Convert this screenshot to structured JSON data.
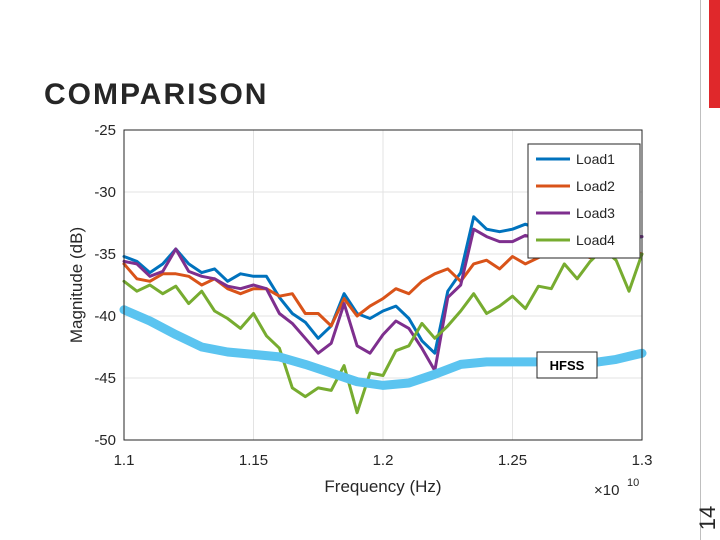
{
  "slide": {
    "title": "COMPARISON",
    "page_number": "14",
    "accent_color": "#e0282b"
  },
  "chart_data": {
    "type": "line",
    "title": "",
    "xlabel": "Frequency (Hz)",
    "ylabel": "Magnitude (dB)",
    "x_exponent_label": "×10",
    "x_exponent_power": "10",
    "xlim": [
      1.1,
      1.3
    ],
    "ylim": [
      -50,
      -25
    ],
    "xticks": [
      1.1,
      1.15,
      1.2,
      1.25,
      1.3
    ],
    "xtick_labels": [
      "1.1",
      "1.15",
      "1.2",
      "1.25",
      "1.3"
    ],
    "yticks": [
      -25,
      -30,
      -35,
      -40,
      -45,
      -50
    ],
    "ytick_labels": [
      "-25",
      "-30",
      "-35",
      "-40",
      "-45",
      "-50"
    ],
    "grid": true,
    "legend_position": "top-right",
    "annotation": "HFSS",
    "series": [
      {
        "name": "Load1",
        "color": "#0072bd",
        "x": [
          1.1,
          1.105,
          1.11,
          1.115,
          1.12,
          1.125,
          1.13,
          1.135,
          1.14,
          1.145,
          1.15,
          1.155,
          1.16,
          1.165,
          1.17,
          1.175,
          1.18,
          1.185,
          1.19,
          1.195,
          1.2,
          1.205,
          1.21,
          1.215,
          1.22,
          1.225,
          1.23,
          1.235,
          1.24,
          1.245,
          1.25,
          1.255,
          1.26,
          1.265,
          1.27,
          1.275,
          1.28,
          1.285,
          1.29,
          1.295,
          1.3
        ],
        "y": [
          -35.2,
          -35.6,
          -36.5,
          -35.8,
          -34.6,
          -35.8,
          -36.5,
          -36.2,
          -37.2,
          -36.6,
          -36.8,
          -36.8,
          -38.5,
          -39.8,
          -40.5,
          -41.8,
          -40.8,
          -38.2,
          -39.8,
          -40.2,
          -39.6,
          -39.2,
          -40.2,
          -42.0,
          -43.0,
          -38.0,
          -36.5,
          -32.0,
          -33.0,
          -33.2,
          -33.0,
          -32.6,
          -33.0,
          -33.5,
          -34.8,
          -34.0,
          -33.8,
          -34.0,
          -33.8,
          -33.8,
          -33.6
        ]
      },
      {
        "name": "Load2",
        "color": "#d95319",
        "x": [
          1.1,
          1.105,
          1.11,
          1.115,
          1.12,
          1.125,
          1.13,
          1.135,
          1.14,
          1.145,
          1.15,
          1.155,
          1.16,
          1.165,
          1.17,
          1.175,
          1.18,
          1.185,
          1.19,
          1.195,
          1.2,
          1.205,
          1.21,
          1.215,
          1.22,
          1.225,
          1.23,
          1.235,
          1.24,
          1.245,
          1.25,
          1.255,
          1.26,
          1.265,
          1.27,
          1.275,
          1.28,
          1.285,
          1.29,
          1.295,
          1.3
        ],
        "y": [
          -35.8,
          -37.0,
          -37.2,
          -36.6,
          -36.6,
          -36.8,
          -37.5,
          -37.0,
          -37.8,
          -38.2,
          -37.8,
          -37.8,
          -38.4,
          -38.2,
          -39.8,
          -39.8,
          -40.8,
          -38.6,
          -40.0,
          -39.2,
          -38.6,
          -37.8,
          -38.2,
          -37.2,
          -36.6,
          -36.2,
          -37.2,
          -35.8,
          -35.5,
          -36.2,
          -35.2,
          -35.8,
          -35.3,
          -34.8,
          -35.0,
          -34.9,
          -35.3,
          -34.5,
          -35.0,
          -34.8,
          -35.0
        ]
      },
      {
        "name": "Load3",
        "color": "#7e2f8e",
        "x": [
          1.1,
          1.105,
          1.11,
          1.115,
          1.12,
          1.125,
          1.13,
          1.135,
          1.14,
          1.145,
          1.15,
          1.155,
          1.16,
          1.165,
          1.17,
          1.175,
          1.18,
          1.185,
          1.19,
          1.195,
          1.2,
          1.205,
          1.21,
          1.215,
          1.22,
          1.225,
          1.23,
          1.235,
          1.24,
          1.245,
          1.25,
          1.255,
          1.26,
          1.265,
          1.27,
          1.275,
          1.28,
          1.285,
          1.29,
          1.295,
          1.3
        ],
        "y": [
          -35.6,
          -35.8,
          -36.8,
          -36.4,
          -34.6,
          -36.4,
          -36.8,
          -37.0,
          -37.6,
          -37.8,
          -37.5,
          -37.8,
          -39.8,
          -40.6,
          -41.8,
          -43.0,
          -42.2,
          -39.0,
          -42.4,
          -43.0,
          -41.5,
          -40.4,
          -41.0,
          -42.6,
          -44.4,
          -38.5,
          -37.5,
          -33.0,
          -33.6,
          -34.0,
          -34.0,
          -33.5,
          -33.8,
          -34.2,
          -35.0,
          -34.5,
          -34.0,
          -33.6,
          -33.8,
          -33.6,
          -33.6
        ]
      },
      {
        "name": "Load4",
        "color": "#77ac30",
        "x": [
          1.1,
          1.105,
          1.11,
          1.115,
          1.12,
          1.125,
          1.13,
          1.135,
          1.14,
          1.145,
          1.15,
          1.155,
          1.16,
          1.165,
          1.17,
          1.175,
          1.18,
          1.185,
          1.19,
          1.195,
          1.2,
          1.205,
          1.21,
          1.215,
          1.22,
          1.225,
          1.23,
          1.235,
          1.24,
          1.245,
          1.25,
          1.255,
          1.26,
          1.265,
          1.27,
          1.275,
          1.28,
          1.285,
          1.29,
          1.295,
          1.3
        ],
        "y": [
          -37.2,
          -38.0,
          -37.5,
          -38.2,
          -37.6,
          -39.0,
          -38.0,
          -39.6,
          -40.2,
          -41.0,
          -39.8,
          -41.6,
          -42.6,
          -45.8,
          -46.5,
          -45.8,
          -46.0,
          -44.0,
          -47.8,
          -44.6,
          -44.8,
          -42.8,
          -42.4,
          -40.6,
          -41.8,
          -40.8,
          -39.6,
          -38.2,
          -39.8,
          -39.2,
          -38.4,
          -39.4,
          -37.6,
          -37.8,
          -35.8,
          -37.0,
          -35.6,
          -34.6,
          -35.5,
          -38.0,
          -35.0
        ]
      },
      {
        "name": "HFSS",
        "color": "#5bc4f0",
        "x": [
          1.1,
          1.11,
          1.12,
          1.13,
          1.14,
          1.15,
          1.16,
          1.17,
          1.18,
          1.19,
          1.2,
          1.21,
          1.22,
          1.23,
          1.24,
          1.25,
          1.26,
          1.27,
          1.28,
          1.29,
          1.3
        ],
        "y": [
          -39.5,
          -40.4,
          -41.5,
          -42.5,
          -42.9,
          -43.1,
          -43.3,
          -43.9,
          -44.6,
          -45.3,
          -45.6,
          -45.4,
          -44.7,
          -43.9,
          -43.7,
          -43.7,
          -43.7,
          -43.8,
          -43.8,
          -43.5,
          -43.0
        ]
      }
    ]
  }
}
